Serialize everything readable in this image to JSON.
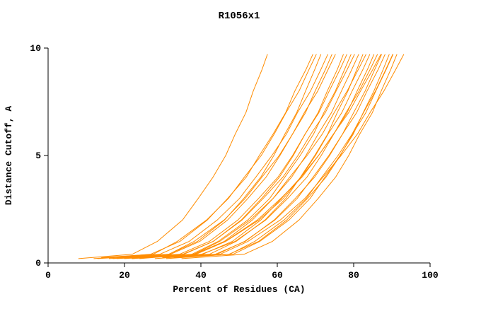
{
  "chart_data": {
    "type": "line",
    "title": "R1056x1",
    "xlabel": "Percent of Residues (CA)",
    "ylabel": "Distance Cutoff, A",
    "xlim": [
      0,
      100
    ],
    "ylim": [
      0,
      10
    ],
    "x_ticks": [
      0,
      20,
      40,
      60,
      80,
      100
    ],
    "y_ticks": [
      0,
      5,
      10
    ],
    "grid": false,
    "legend": null,
    "color": "#ff8c00",
    "background": "#ffffff",
    "series": [
      [
        [
          8,
          0.2
        ],
        [
          22,
          0.4
        ],
        [
          28.6,
          1
        ],
        [
          35.2,
          2
        ],
        [
          39.3,
          3
        ],
        [
          43.2,
          4
        ],
        [
          46.5,
          5
        ],
        [
          49,
          6
        ],
        [
          51.8,
          7
        ],
        [
          53.7,
          8
        ],
        [
          56,
          9
        ],
        [
          57.4,
          9.7
        ]
      ],
      [
        [
          12,
          0.2
        ],
        [
          26.8,
          0.4
        ],
        [
          34.5,
          1
        ],
        [
          41.7,
          2
        ],
        [
          47,
          3
        ],
        [
          51.9,
          4
        ],
        [
          55.3,
          5
        ],
        [
          58.9,
          6
        ],
        [
          62.2,
          7
        ],
        [
          64.6,
          8
        ],
        [
          67.5,
          9
        ],
        [
          69.3,
          9.7
        ]
      ],
      [
        [
          14,
          0.25
        ],
        [
          27.5,
          0.4
        ],
        [
          33.8,
          1
        ],
        [
          41.5,
          2
        ],
        [
          47.2,
          3
        ],
        [
          51.4,
          4
        ],
        [
          55.8,
          5
        ],
        [
          59.2,
          6
        ],
        [
          62.3,
          7
        ],
        [
          65.7,
          8
        ],
        [
          68.3,
          9
        ],
        [
          70.2,
          9.7
        ]
      ],
      [
        [
          13,
          0.2
        ],
        [
          31.5,
          0.4
        ],
        [
          39.1,
          1
        ],
        [
          46.2,
          2
        ],
        [
          51.2,
          3
        ],
        [
          55.7,
          4
        ],
        [
          59.1,
          5
        ],
        [
          62,
          6
        ],
        [
          65.1,
          7
        ],
        [
          67.4,
          8
        ],
        [
          69.8,
          9
        ],
        [
          71.4,
          9.7
        ]
      ],
      [
        [
          15,
          0.25
        ],
        [
          29.2,
          0.4
        ],
        [
          36.9,
          1
        ],
        [
          44.3,
          2
        ],
        [
          50.1,
          3
        ],
        [
          54.4,
          4
        ],
        [
          58.6,
          5
        ],
        [
          62.4,
          6
        ],
        [
          65.3,
          7
        ],
        [
          68.7,
          8
        ],
        [
          71.4,
          9
        ],
        [
          73.2,
          9.7
        ]
      ],
      [
        [
          16,
          0.2
        ],
        [
          32,
          0.4
        ],
        [
          39.7,
          1
        ],
        [
          47,
          2
        ],
        [
          52.3,
          3
        ],
        [
          57.1,
          4
        ],
        [
          60.7,
          5
        ],
        [
          64,
          6
        ],
        [
          67.4,
          7
        ],
        [
          69.9,
          8
        ],
        [
          72.6,
          9
        ],
        [
          74.3,
          9.7
        ]
      ],
      [
        [
          18,
          0.25
        ],
        [
          31.6,
          0.4
        ],
        [
          38.2,
          1
        ],
        [
          46.1,
          2
        ],
        [
          51.6,
          3
        ],
        [
          56,
          4
        ],
        [
          60.5,
          5
        ],
        [
          64,
          6
        ],
        [
          67.1,
          7
        ],
        [
          70.6,
          8
        ],
        [
          73.3,
          9
        ],
        [
          75.2,
          9.7
        ]
      ],
      [
        [
          17,
          0.2
        ],
        [
          35.2,
          0.4
        ],
        [
          43.2,
          1
        ],
        [
          50.6,
          2
        ],
        [
          55.9,
          3
        ],
        [
          60.6,
          4
        ],
        [
          64.2,
          5
        ],
        [
          67.3,
          6
        ],
        [
          70.7,
          7
        ],
        [
          73.1,
          8
        ],
        [
          75.7,
          9
        ],
        [
          77.3,
          9.7
        ]
      ],
      [
        [
          19,
          0.25
        ],
        [
          34.4,
          0.4
        ],
        [
          42.2,
          1
        ],
        [
          49.7,
          2
        ],
        [
          55.1,
          3
        ],
        [
          60.2,
          4
        ],
        [
          64,
          5
        ],
        [
          67.3,
          6
        ],
        [
          70.9,
          7
        ],
        [
          73.6,
          8
        ],
        [
          76.4,
          9
        ],
        [
          78.2,
          9.7
        ]
      ],
      [
        [
          20,
          0.2
        ],
        [
          37.6,
          0.4
        ],
        [
          44.5,
          1
        ],
        [
          52.3,
          2
        ],
        [
          58,
          3
        ],
        [
          62,
          4
        ],
        [
          66,
          5
        ],
        [
          69.5,
          6
        ],
        [
          72.2,
          7
        ],
        [
          75.2,
          8
        ],
        [
          77.6,
          9
        ],
        [
          79.3,
          9.7
        ]
      ],
      [
        [
          21,
          0.25
        ],
        [
          35.5,
          0.4
        ],
        [
          43.2,
          1
        ],
        [
          50.8,
          2
        ],
        [
          56.3,
          3
        ],
        [
          61.5,
          4
        ],
        [
          65.4,
          5
        ],
        [
          68.8,
          6
        ],
        [
          72.6,
          7
        ],
        [
          75.4,
          8
        ],
        [
          78.3,
          9
        ],
        [
          80.2,
          9.7
        ]
      ],
      [
        [
          22,
          0.2
        ],
        [
          38.3,
          0.4
        ],
        [
          46.1,
          1
        ],
        [
          53.5,
          2
        ],
        [
          58.9,
          3
        ],
        [
          63.8,
          4
        ],
        [
          67.5,
          5
        ],
        [
          70.7,
          6
        ],
        [
          74.2,
          7
        ],
        [
          76.8,
          8
        ],
        [
          79.5,
          9
        ],
        [
          81.3,
          9.7
        ]
      ],
      [
        [
          23,
          0.25
        ],
        [
          42.2,
          0.4
        ],
        [
          49.2,
          1
        ],
        [
          56.8,
          2
        ],
        [
          62.2,
          3
        ],
        [
          66.1,
          4
        ],
        [
          69.8,
          5
        ],
        [
          73.2,
          6
        ],
        [
          75.7,
          7
        ],
        [
          78.5,
          8
        ],
        [
          80.8,
          9
        ],
        [
          82.4,
          9.7
        ]
      ],
      [
        [
          24,
          0.2
        ],
        [
          38.1,
          0.4
        ],
        [
          44.9,
          1
        ],
        [
          52.9,
          2
        ],
        [
          58.9,
          3
        ],
        [
          63.3,
          4
        ],
        [
          67.8,
          5
        ],
        [
          71.8,
          6
        ],
        [
          74.9,
          7
        ],
        [
          78.3,
          8
        ],
        [
          81.2,
          9
        ],
        [
          83.2,
          9.7
        ]
      ],
      [
        [
          25,
          0.25
        ],
        [
          40.4,
          0.4
        ],
        [
          48.2,
          1
        ],
        [
          55.7,
          2
        ],
        [
          61.1,
          3
        ],
        [
          66.2,
          4
        ],
        [
          70,
          5
        ],
        [
          73.3,
          6
        ],
        [
          76.9,
          7
        ],
        [
          79.6,
          8
        ],
        [
          82.4,
          9
        ],
        [
          84.2,
          9.7
        ]
      ],
      [
        [
          18,
          0.2
        ],
        [
          40.1,
          0.4
        ],
        [
          48.9,
          1
        ],
        [
          57,
          2
        ],
        [
          62.7,
          3
        ],
        [
          67.8,
          4
        ],
        [
          71.5,
          5
        ],
        [
          74.8,
          6
        ],
        [
          78.3,
          7
        ],
        [
          80.9,
          8
        ],
        [
          83.6,
          9
        ],
        [
          85.3,
          9.7
        ]
      ],
      [
        [
          20,
          0.25
        ],
        [
          38.7,
          0.4
        ],
        [
          46.5,
          1
        ],
        [
          55.2,
          2
        ],
        [
          61.6,
          3
        ],
        [
          66.2,
          4
        ],
        [
          70.8,
          5
        ],
        [
          74.8,
          6
        ],
        [
          78,
          7
        ],
        [
          81.4,
          8
        ],
        [
          84.3,
          9
        ],
        [
          86.2,
          9.7
        ]
      ],
      [
        [
          22,
          0.2
        ],
        [
          38,
          0.4
        ],
        [
          46.4,
          1
        ],
        [
          54.8,
          2
        ],
        [
          60.9,
          3
        ],
        [
          66.5,
          4
        ],
        [
          70.8,
          5
        ],
        [
          74.7,
          6
        ],
        [
          78.7,
          7
        ],
        [
          81.8,
          8
        ],
        [
          85,
          9
        ],
        [
          87.1,
          9.7
        ]
      ],
      [
        [
          26,
          0.25
        ],
        [
          44.2,
          0.4
        ],
        [
          51.4,
          1
        ],
        [
          59.4,
          2
        ],
        [
          65.2,
          3
        ],
        [
          69.4,
          4
        ],
        [
          73.5,
          5
        ],
        [
          77.1,
          6
        ],
        [
          80,
          7
        ],
        [
          83,
          8
        ],
        [
          85.5,
          9
        ],
        [
          87.3,
          9.7
        ]
      ],
      [
        [
          28,
          0.2
        ],
        [
          43.7,
          0.4
        ],
        [
          51.6,
          1
        ],
        [
          59.2,
          2
        ],
        [
          64.7,
          3
        ],
        [
          69.8,
          4
        ],
        [
          73.7,
          5
        ],
        [
          77.1,
          6
        ],
        [
          80.8,
          7
        ],
        [
          83.5,
          8
        ],
        [
          86.4,
          9
        ],
        [
          88.2,
          9.7
        ]
      ],
      [
        [
          30,
          0.25
        ],
        [
          48.4,
          0.4
        ],
        [
          55.4,
          1
        ],
        [
          63.1,
          2
        ],
        [
          68.6,
          3
        ],
        [
          72.5,
          4
        ],
        [
          76.4,
          5
        ],
        [
          79.9,
          6
        ],
        [
          82.5,
          7
        ],
        [
          85.3,
          8
        ],
        [
          87.7,
          9
        ],
        [
          89.3,
          9.7
        ]
      ],
      [
        [
          31,
          0.2
        ],
        [
          47.3,
          0.4
        ],
        [
          55.1,
          1
        ],
        [
          62.5,
          2
        ],
        [
          67.9,
          3
        ],
        [
          72.8,
          4
        ],
        [
          76.5,
          5
        ],
        [
          79.7,
          6
        ],
        [
          83.2,
          7
        ],
        [
          85.8,
          8
        ],
        [
          88.5,
          9
        ],
        [
          90.3,
          9.7
        ]
      ],
      [
        [
          33,
          0.25
        ],
        [
          47.5,
          0.4
        ],
        [
          54.1,
          1
        ],
        [
          61.8,
          2
        ],
        [
          67.6,
          3
        ],
        [
          71.7,
          4
        ],
        [
          75.9,
          5
        ],
        [
          79.6,
          6
        ],
        [
          82.6,
          7
        ],
        [
          85.7,
          8
        ],
        [
          88.4,
          9
        ],
        [
          90.2,
          9.7
        ]
      ],
      [
        [
          35,
          0.2
        ],
        [
          51.3,
          0.4
        ],
        [
          58.7,
          1
        ],
        [
          65.7,
          2
        ],
        [
          70.7,
          3
        ],
        [
          75.3,
          4
        ],
        [
          78.7,
          5
        ],
        [
          81.6,
          6
        ],
        [
          84.9,
          7
        ],
        [
          87.2,
          8
        ],
        [
          89.7,
          9
        ],
        [
          91.3,
          9.7
        ]
      ],
      [
        [
          30,
          0.25
        ],
        [
          45,
          0.4
        ],
        [
          52.3,
          1
        ],
        [
          60.8,
          2
        ],
        [
          67.2,
          3
        ],
        [
          72,
          4
        ],
        [
          76.7,
          5
        ],
        [
          81,
          6
        ],
        [
          84.3,
          7
        ],
        [
          87.9,
          8
        ],
        [
          91,
          9
        ],
        [
          93.1,
          9.7
        ]
      ]
    ]
  }
}
